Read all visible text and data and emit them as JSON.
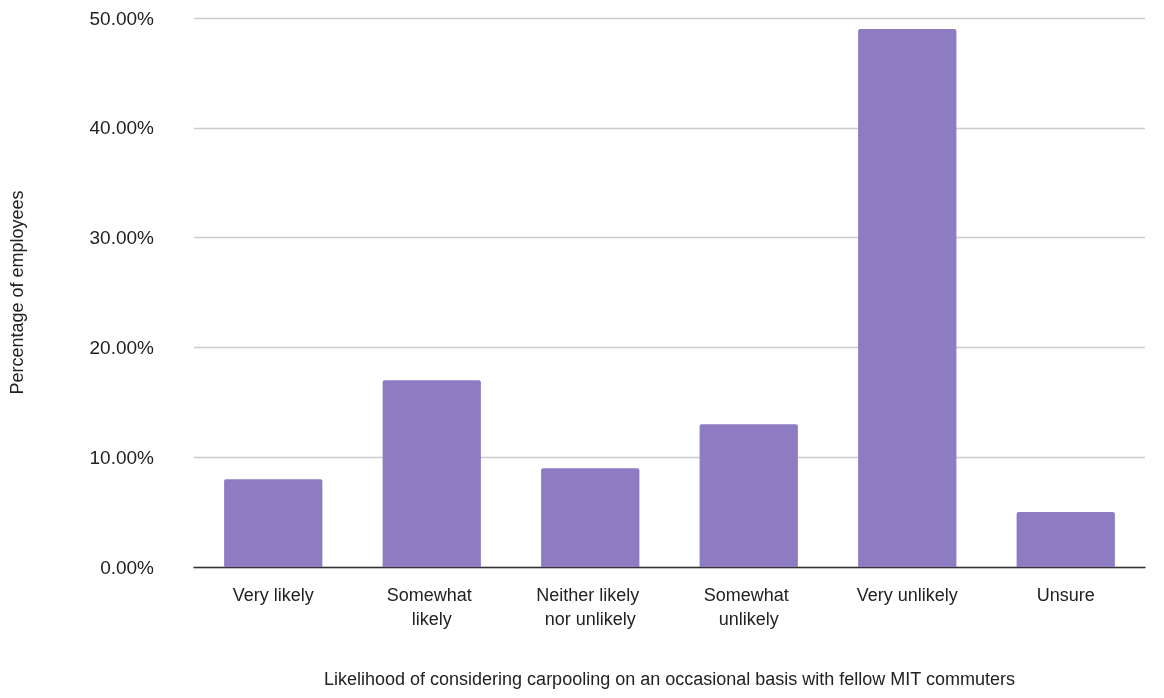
{
  "chart_data": {
    "type": "bar",
    "xlabel": "Likelihood of considering carpooling on an occasional basis with fellow MIT commuters",
    "ylabel": "Percentage of employees",
    "categories": [
      "Very likely",
      "Somewhat likely",
      "Neither likely nor unlikely",
      "Somewhat unlikely",
      "Very unlikely",
      "Unsure"
    ],
    "values": [
      8,
      17,
      9,
      13,
      49,
      5
    ],
    "color": "#8e7cc3",
    "ylim": [
      0,
      50
    ],
    "yticks": [
      {
        "value": 0,
        "label": "0.00%"
      },
      {
        "value": 10,
        "label": "10.00%"
      },
      {
        "value": 20,
        "label": "20.00%"
      },
      {
        "value": 30,
        "label": "30.00%"
      },
      {
        "value": 40,
        "label": "40.00%"
      },
      {
        "value": 50,
        "label": "50.00%"
      }
    ],
    "grid": "y"
  }
}
